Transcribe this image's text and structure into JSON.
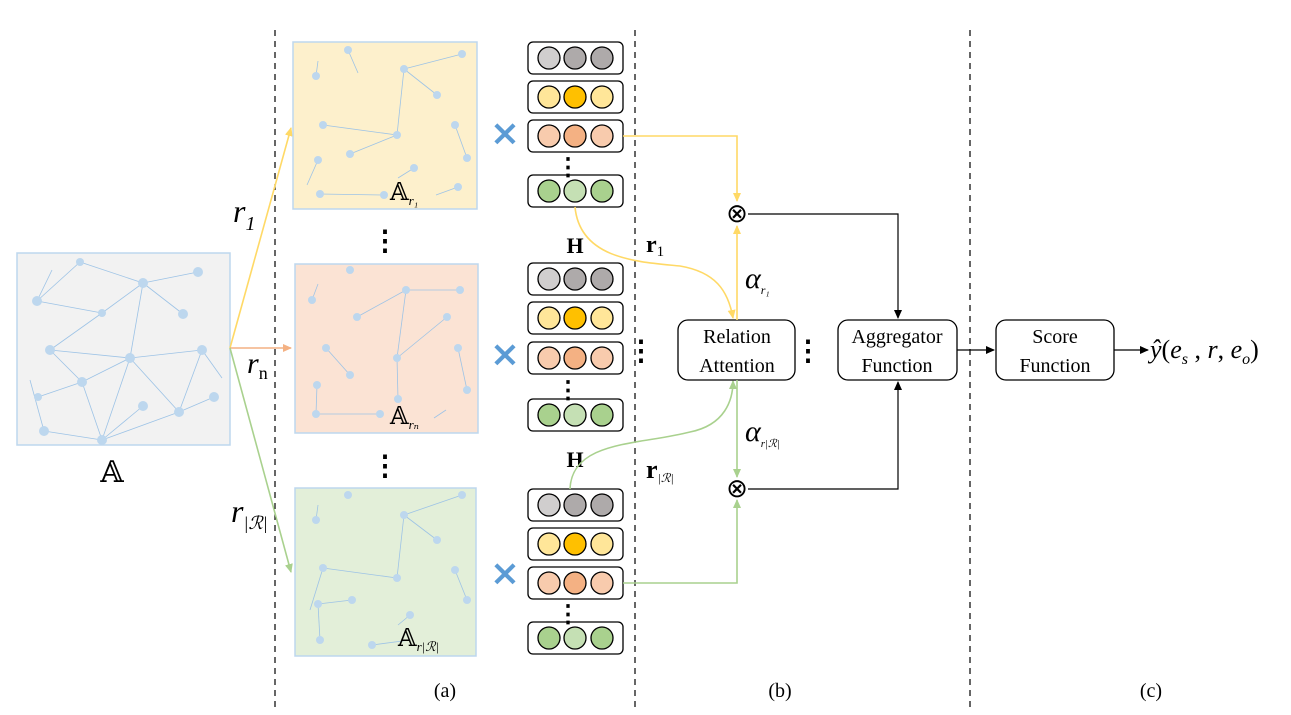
{
  "graph_labels": {
    "full": "𝔸",
    "sub1": "𝔸",
    "sub1_sub": "r₁",
    "subn": "𝔸",
    "subn_sub": "rₙ",
    "subR": "𝔸",
    "subR_sub": "r|ℛ|"
  },
  "relation_labels": {
    "r1": "r",
    "r1_sub": "1",
    "rn": "r",
    "rn_sub": "n",
    "rR": "r",
    "rR_sub": "|ℛ|"
  },
  "matrix_labels": {
    "H_top": "H",
    "H_bottom": "H"
  },
  "vector_labels": {
    "r1": "r",
    "r1_sub": "1",
    "rR": "r",
    "rR_sub": "|ℛ|"
  },
  "weight_labels": {
    "alpha1": "α",
    "alpha1_sub": "r₁",
    "alphaR": "α",
    "alphaR_sub": "r|ℛ|"
  },
  "boxes": {
    "relation_attention": [
      "Relation",
      "Attention"
    ],
    "aggregator": [
      "Aggregator",
      "Function"
    ],
    "score": [
      "Score",
      "Function"
    ]
  },
  "output": {
    "y": "ŷ",
    "args_open": "(",
    "es": "e",
    "es_sub": "s",
    "comma1": " , ",
    "r": "r",
    "comma2": ", ",
    "eo": "e",
    "eo_sub": "o",
    "args_close": ")"
  },
  "section_labels": [
    "(a)",
    "(b)",
    "(c)"
  ],
  "ellipsis": "⋮",
  "multiply_symbol": "×",
  "otimes_symbol": "⊗",
  "colors": {
    "yellow_panel": "#fdf0cc",
    "orange_panel": "#fbe3d4",
    "green_panel": "#e3efd9",
    "gray_panel": "#f2f2f2",
    "node_blue": "#bdd7ee",
    "edge_blue": "#9dc3e6",
    "yellow_line": "#ffd966",
    "orange_line": "#f4b183",
    "green_line": "#a9d18e",
    "cross_blue": "#5b9bd5",
    "circle_gray": "#d0cece",
    "circle_gray_mid": "#aeaaaa",
    "circle_yellow": "#ffe699",
    "circle_yellow_mid": "#ffc000",
    "circle_orange": "#f8cbad",
    "circle_orange_mid": "#f4b183",
    "circle_green": "#a9d18e",
    "circle_green_light": "#c5e0b4"
  }
}
